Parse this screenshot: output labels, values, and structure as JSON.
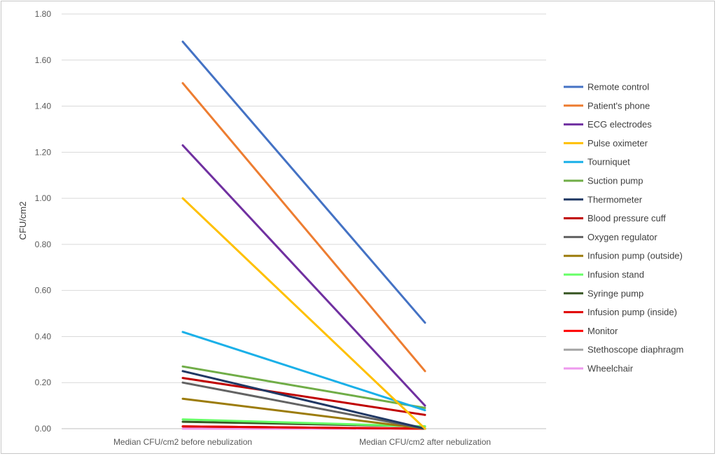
{
  "chart_data": {
    "type": "line",
    "title": "",
    "xlabel": "",
    "ylabel": "CFU/cm2",
    "categories": [
      "Median CFU/cm2 before nebulization",
      "Median CFU/cm2 after nebulization"
    ],
    "ylim": [
      0,
      1.8
    ],
    "y_ticks": [
      "0.00",
      "0.20",
      "0.40",
      "0.60",
      "0.80",
      "1.00",
      "1.20",
      "1.40",
      "1.60",
      "1.80"
    ],
    "grid": "horizontal",
    "legend_position": "right",
    "series": [
      {
        "name": "Remote control",
        "color": "#4472c4",
        "values": [
          1.68,
          0.46
        ]
      },
      {
        "name": "Patient's phone",
        "color": "#ed7d31",
        "values": [
          1.5,
          0.25
        ]
      },
      {
        "name": "ECG electrodes",
        "color": "#7030a0",
        "values": [
          1.23,
          0.1
        ]
      },
      {
        "name": "Pulse oximeter",
        "color": "#ffc000",
        "values": [
          1.0,
          0.0
        ]
      },
      {
        "name": "Tourniquet",
        "color": "#1ab0e8",
        "values": [
          0.42,
          0.08
        ]
      },
      {
        "name": "Suction pump",
        "color": "#70ad47",
        "values": [
          0.27,
          0.09
        ]
      },
      {
        "name": "Thermometer",
        "color": "#203864",
        "values": [
          0.25,
          0.0
        ]
      },
      {
        "name": "Blood pressure cuff",
        "color": "#c00000",
        "values": [
          0.22,
          0.06
        ]
      },
      {
        "name": "Oxygen regulator",
        "color": "#636363",
        "values": [
          0.2,
          0.0
        ]
      },
      {
        "name": "Infusion pump (outside)",
        "color": "#9c7c0c",
        "values": [
          0.13,
          0.0
        ]
      },
      {
        "name": "Infusion stand",
        "color": "#66ff66",
        "values": [
          0.04,
          0.01
        ]
      },
      {
        "name": "Syringe pump",
        "color": "#385723",
        "values": [
          0.03,
          0.01
        ]
      },
      {
        "name": "Infusion pump (inside)",
        "color": "#e00000",
        "values": [
          0.01,
          0.0
        ]
      },
      {
        "name": "Monitor",
        "color": "#ff0000",
        "values": [
          0.01,
          0.0
        ]
      },
      {
        "name": "Stethoscope diaphragm",
        "color": "#a5a5a5",
        "values": [
          0.01,
          0.0
        ]
      },
      {
        "name": "Wheelchair",
        "color": "#ee99ee",
        "values": [
          0.0,
          0.0
        ]
      }
    ]
  }
}
